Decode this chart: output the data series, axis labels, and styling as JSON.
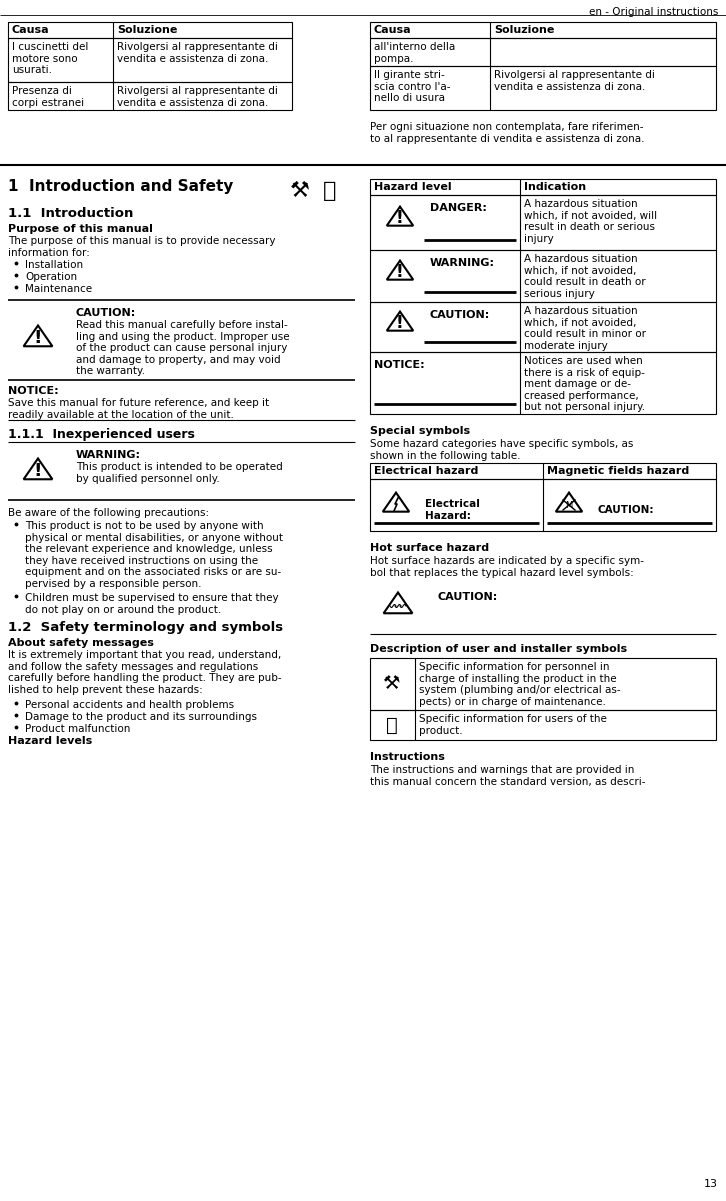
{
  "page_header": "en - Original instructions",
  "page_number": "13",
  "bg_color": "#ffffff",
  "top_table1": {
    "headers": [
      "Causa",
      "Soluzione"
    ],
    "rows": [
      [
        "I cuscinetti del\nmotore sono\nusurati.",
        "Rivolgersi al rappresentante di\nvendita e assistenza di zona."
      ],
      [
        "Presenza di\ncorpi estranei",
        "Rivolgersi al rappresentante di\nvendita e assistenza di zona."
      ]
    ]
  },
  "top_table2": {
    "headers": [
      "Causa",
      "Soluzione"
    ],
    "rows": [
      [
        "all'interno della\npompa.",
        ""
      ],
      [
        "Il girante stri-\nscia contro l'a-\nnello di usura",
        "Rivolgersi al rappresentante di\nvendita e assistenza di zona."
      ]
    ]
  },
  "note_text": "Per ogni situazione non contemplata, fare riferimen-\nto al rappresentante di vendita e assistenza di zona.",
  "section1_title": "1  Introduction and Safety",
  "section11_title": "1.1  Introduction",
  "purpose_bold": "Purpose of this manual",
  "purpose_text": "The purpose of this manual is to provide necessary\ninformation for:",
  "purpose_bullets": [
    "Installation",
    "Operation",
    "Maintenance"
  ],
  "caution_box": {
    "label": "CAUTION:",
    "text": "Read this manual carefully before instal-\nling and using the product. Improper use\nof the product can cause personal injury\nand damage to property, and may void\nthe warranty."
  },
  "notice_label": "NOTICE:",
  "notice_text": "Save this manual for future reference, and keep it\nreadily available at the location of the unit.",
  "section111_title": "1.1.1  Inexperienced users",
  "warning_box": {
    "label": "WARNING:",
    "text": "This product is intended to be operated\nby qualified personnel only."
  },
  "aware_text": "Be aware of the following precautions:",
  "aware_bullets": [
    "This product is not to be used by anyone with\nphysical or mental disabilities, or anyone without\nthe relevant experience and knowledge, unless\nthey have received instructions on using the\nequipment and on the associated risks or are su-\npervised by a responsible person.",
    "Children must be supervised to ensure that they\ndo not play on or around the product."
  ],
  "section12_title": "1.2  Safety terminology and symbols",
  "safety_msg_bold": "About safety messages",
  "safety_msg_text": "It is extremely important that you read, understand,\nand follow the safety messages and regulations\ncarefully before handling the product. They are pub-\nlished to help prevent these hazards:",
  "safety_bullets": [
    "Personal accidents and health problems",
    "Damage to the product and its surroundings",
    "Product malfunction"
  ],
  "hazard_bold": "Hazard levels",
  "hazard_table": {
    "headers": [
      "Hazard level",
      "Indication"
    ],
    "rows": [
      [
        "DANGER:",
        "A hazardous situation\nwhich, if not avoided, will\nresult in death or serious\ninjury"
      ],
      [
        "WARNING:",
        "A hazardous situation\nwhich, if not avoided,\ncould result in death or\nserious injury"
      ],
      [
        "CAUTION:",
        "A hazardous situation\nwhich, if not avoided,\ncould result in minor or\nmoderate injury"
      ],
      [
        "NOTICE:",
        "Notices are used when\nthere is a risk of equip-\nment damage or de-\ncreased performance,\nbut not personal injury."
      ]
    ]
  },
  "special_symbols_bold": "Special symbols",
  "special_symbols_text": "Some hazard categories have specific symbols, as\nshown in the following table.",
  "special_table": {
    "headers": [
      "Electrical hazard",
      "Magnetic fields hazard"
    ],
    "row": [
      "Electrical\nHazard:",
      "CAUTION:"
    ]
  },
  "hot_surface_bold": "Hot surface hazard",
  "hot_surface_text": "Hot surface hazards are indicated by a specific sym-\nbol that replaces the typical hazard level symbols:",
  "hot_caution": "CAUTION:",
  "user_installer_bold": "Description of user and installer symbols",
  "user_installer_rows": [
    "Specific information for personnel in\ncharge of installing the product in the\nsystem (plumbing and/or electrical as-\npects) or in charge of maintenance.",
    "Specific information for users of the\nproduct."
  ],
  "instructions_bold": "Instructions",
  "instructions_text": "The instructions and warnings that are provided in\nthis manual concern the standard version, as descri-"
}
